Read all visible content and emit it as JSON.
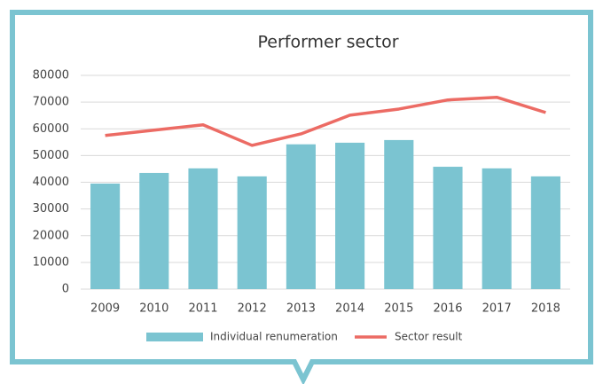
{
  "chart_data": {
    "type": "bar-line",
    "title": "Performer sector",
    "categories": [
      "2009",
      "2010",
      "2011",
      "2012",
      "2013",
      "2014",
      "2015",
      "2016",
      "2017",
      "2018"
    ],
    "series": [
      {
        "name": "Individual renumeration",
        "type": "bar",
        "color": "#7bc4d1",
        "values": [
          39500,
          43500,
          45200,
          42200,
          54200,
          54800,
          55800,
          45800,
          45200,
          42200
        ]
      },
      {
        "name": "Sector result",
        "type": "line",
        "color": "#ec6b64",
        "values": [
          57500,
          59500,
          61500,
          53800,
          58100,
          65100,
          67400,
          70800,
          71800,
          66100
        ]
      }
    ],
    "ylim": [
      0,
      80000
    ],
    "yticks": [
      0,
      10000,
      20000,
      30000,
      40000,
      50000,
      60000,
      70000,
      80000
    ],
    "grid": true,
    "legend": "bottom"
  }
}
